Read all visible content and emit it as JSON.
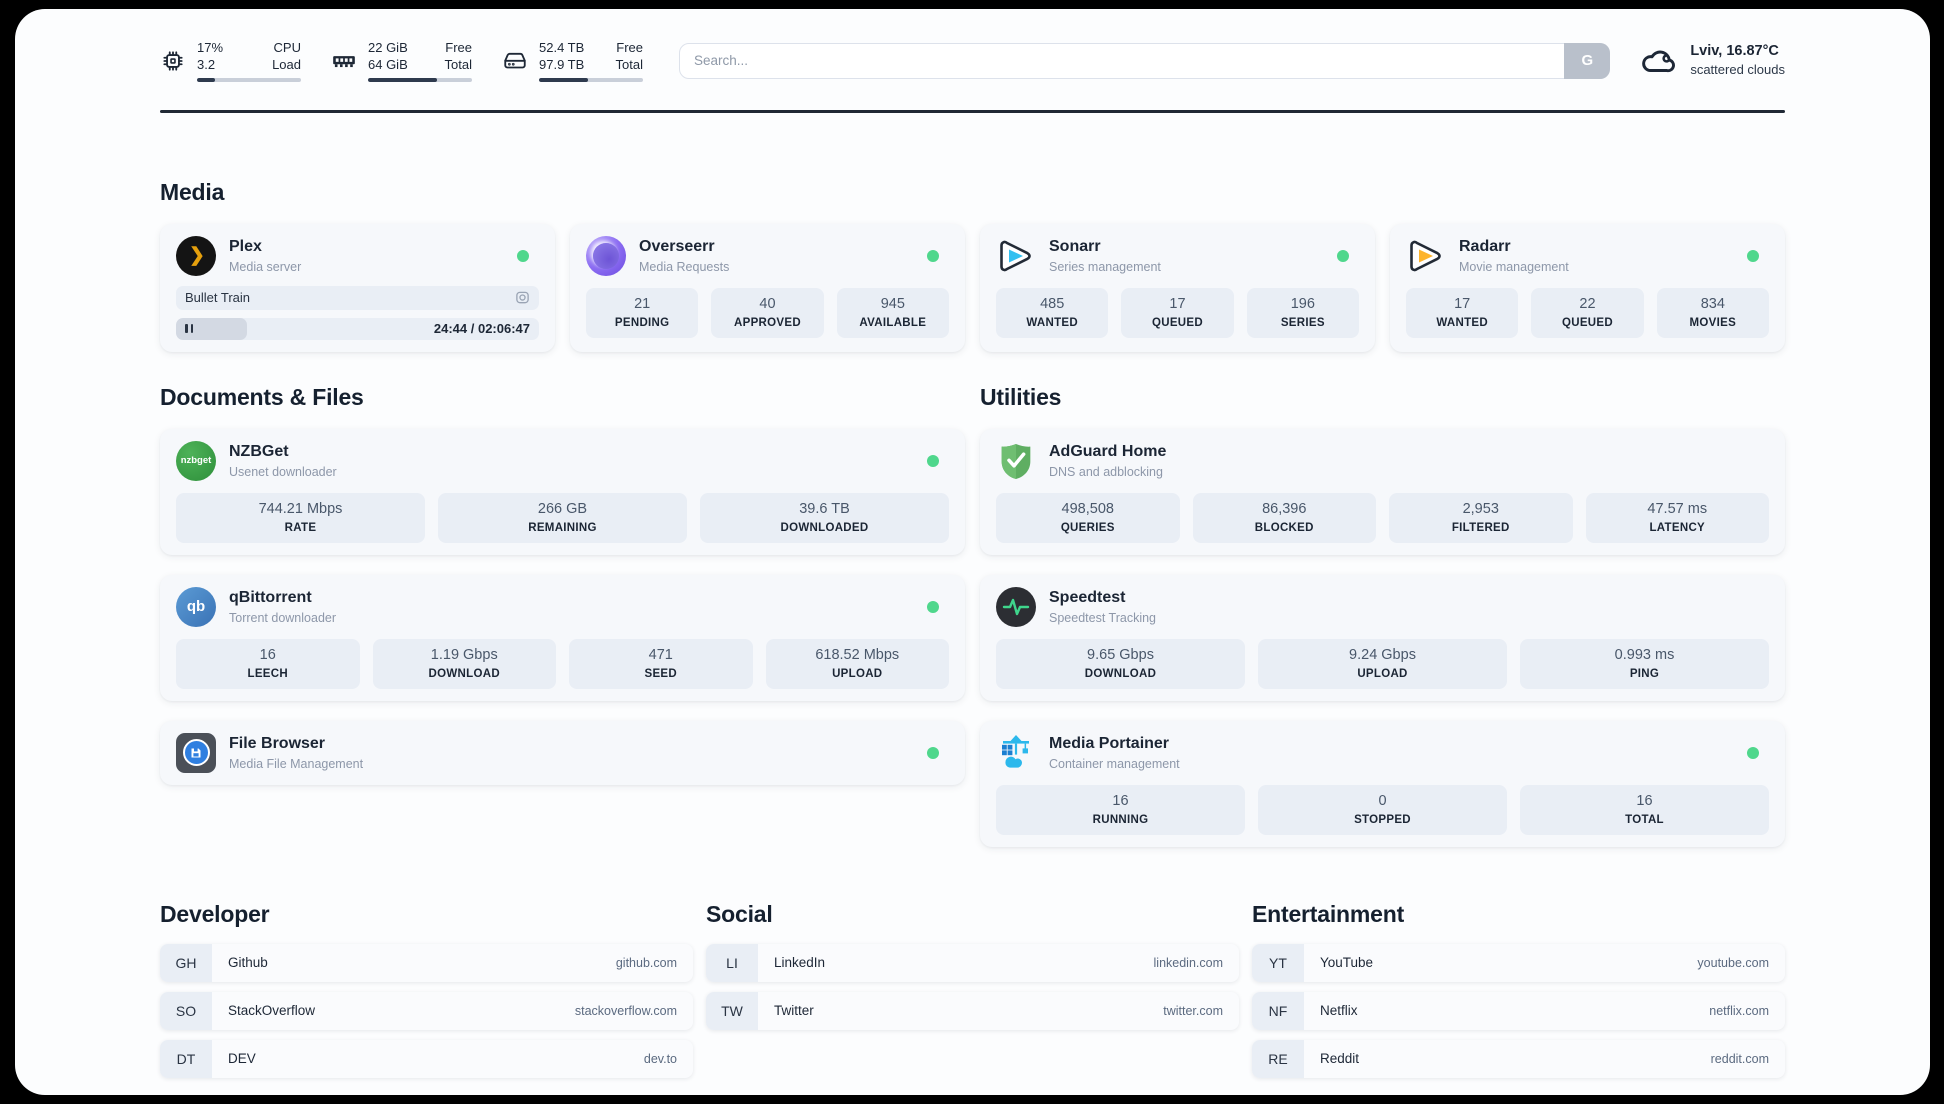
{
  "theme": {
    "status_online_color": "#4fd78c",
    "accent_dark": "#202935",
    "card_background": "#f6f8fb",
    "stat_background": "#e9eef5"
  },
  "header": {
    "cpu": {
      "icon": "cpu-chip-icon",
      "values": [
        "17%",
        "3.2"
      ],
      "labels": [
        "CPU",
        "Load"
      ],
      "progress_pct": 17
    },
    "memory": {
      "icon": "ram-icon",
      "values": [
        "22 GiB",
        "64 GiB"
      ],
      "labels": [
        "Free",
        "Total"
      ],
      "progress_pct": 66
    },
    "storage": {
      "icon": "hard-drive-icon",
      "values": [
        "52.4 TB",
        "97.9 TB"
      ],
      "labels": [
        "Free",
        "Total"
      ],
      "progress_pct": 47
    },
    "search": {
      "placeholder": "Search...",
      "button_label": "G"
    },
    "weather": {
      "icon": "cloud-icon",
      "summary": "Lviv, 16.87°C",
      "condition": "scattered clouds"
    }
  },
  "sections": {
    "media": {
      "title": "Media",
      "plex": {
        "name": "Plex",
        "subtitle": "Media server",
        "icon_glyph": "❯",
        "online": true,
        "now_playing": "Bullet Train",
        "time_display": "24:44 / 02:06:47",
        "progress_pct": 19.5
      },
      "overseerr": {
        "name": "Overseerr",
        "subtitle": "Media Requests",
        "online": true,
        "stats": [
          {
            "value": "21",
            "label": "PENDING"
          },
          {
            "value": "40",
            "label": "APPROVED"
          },
          {
            "value": "945",
            "label": "AVAILABLE"
          }
        ]
      },
      "sonarr": {
        "name": "Sonarr",
        "subtitle": "Series management",
        "online": true,
        "stats": [
          {
            "value": "485",
            "label": "WANTED"
          },
          {
            "value": "17",
            "label": "QUEUED"
          },
          {
            "value": "196",
            "label": "SERIES"
          }
        ]
      },
      "radarr": {
        "name": "Radarr",
        "subtitle": "Movie management",
        "online": true,
        "stats": [
          {
            "value": "17",
            "label": "WANTED"
          },
          {
            "value": "22",
            "label": "QUEUED"
          },
          {
            "value": "834",
            "label": "MOVIES"
          }
        ]
      }
    },
    "documents": {
      "title": "Documents & Files",
      "nzbget": {
        "name": "NZBGet",
        "subtitle": "Usenet downloader",
        "icon_text": "nzbget",
        "online": true,
        "stats": [
          {
            "value": "744.21 Mbps",
            "label": "RATE"
          },
          {
            "value": "266 GB",
            "label": "REMAINING"
          },
          {
            "value": "39.6 TB",
            "label": "DOWNLOADED"
          }
        ]
      },
      "qbittorrent": {
        "name": "qBittorrent",
        "subtitle": "Torrent downloader",
        "icon_text": "qb",
        "online": true,
        "stats": [
          {
            "value": "16",
            "label": "LEECH"
          },
          {
            "value": "1.19 Gbps",
            "label": "DOWNLOAD"
          },
          {
            "value": "471",
            "label": "SEED"
          },
          {
            "value": "618.52 Mbps",
            "label": "UPLOAD"
          }
        ]
      },
      "filebrowser": {
        "name": "File Browser",
        "subtitle": "Media File Management",
        "online": true
      }
    },
    "utilities": {
      "title": "Utilities",
      "adguard": {
        "name": "AdGuard Home",
        "subtitle": "DNS and adblocking",
        "stats": [
          {
            "value": "498,508",
            "label": "QUERIES"
          },
          {
            "value": "86,396",
            "label": "BLOCKED"
          },
          {
            "value": "2,953",
            "label": "FILTERED"
          },
          {
            "value": "47.57 ms",
            "label": "LATENCY"
          }
        ]
      },
      "speedtest": {
        "name": "Speedtest",
        "subtitle": "Speedtest Tracking",
        "stats": [
          {
            "value": "9.65 Gbps",
            "label": "DOWNLOAD"
          },
          {
            "value": "9.24 Gbps",
            "label": "UPLOAD"
          },
          {
            "value": "0.993 ms",
            "label": "PING"
          }
        ]
      },
      "portainer": {
        "name": "Media Portainer",
        "subtitle": "Container management",
        "online": true,
        "stats": [
          {
            "value": "16",
            "label": "RUNNING"
          },
          {
            "value": "0",
            "label": "STOPPED"
          },
          {
            "value": "16",
            "label": "TOTAL"
          }
        ]
      }
    },
    "links": {
      "developer": {
        "title": "Developer",
        "items": [
          {
            "abbr": "GH",
            "name": "Github",
            "url": "github.com"
          },
          {
            "abbr": "SO",
            "name": "StackOverflow",
            "url": "stackoverflow.com"
          },
          {
            "abbr": "DT",
            "name": "DEV",
            "url": "dev.to"
          }
        ]
      },
      "social": {
        "title": "Social",
        "items": [
          {
            "abbr": "LI",
            "name": "LinkedIn",
            "url": "linkedin.com"
          },
          {
            "abbr": "TW",
            "name": "Twitter",
            "url": "twitter.com"
          }
        ]
      },
      "entertainment": {
        "title": "Entertainment",
        "items": [
          {
            "abbr": "YT",
            "name": "YouTube",
            "url": "youtube.com"
          },
          {
            "abbr": "NF",
            "name": "Netflix",
            "url": "netflix.com"
          },
          {
            "abbr": "RE",
            "name": "Reddit",
            "url": "reddit.com"
          }
        ]
      }
    }
  }
}
